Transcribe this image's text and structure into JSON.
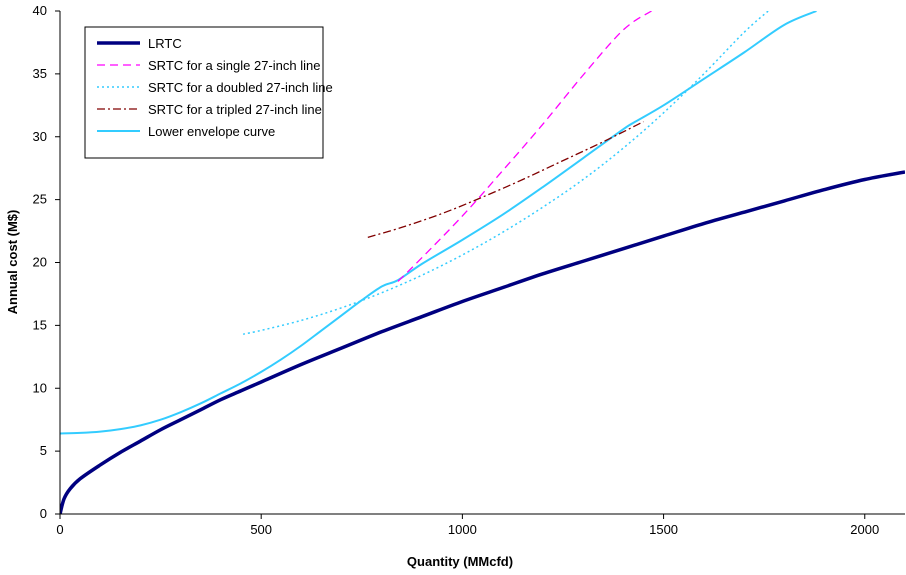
{
  "chart_data": {
    "type": "line",
    "xlabel": "Quantity (MMcfd)",
    "ylabel": "Annual cost (M$)",
    "xlim": [
      0,
      2100
    ],
    "ylim": [
      0,
      40
    ],
    "x_ticks": [
      "0",
      "500",
      "1000",
      "1500",
      "2000"
    ],
    "y_ticks": [
      "0",
      "5",
      "10",
      "15",
      "20",
      "25",
      "30",
      "35",
      "40"
    ],
    "grid": false,
    "legend_position": "top-left",
    "series": [
      {
        "name": "LRTC",
        "color": "#000080",
        "style": "solid-thick",
        "x": [
          0,
          10,
          25,
          50,
          100,
          150,
          200,
          250,
          300,
          350,
          400,
          450,
          500,
          600,
          700,
          800,
          900,
          1000,
          1100,
          1200,
          1300,
          1400,
          1500,
          1600,
          1700,
          1800,
          1900,
          2000,
          2100
        ],
        "y": [
          0,
          1.2,
          2.0,
          2.8,
          3.9,
          4.9,
          5.8,
          6.7,
          7.5,
          8.3,
          9.1,
          9.8,
          10.5,
          11.9,
          13.2,
          14.5,
          15.7,
          16.9,
          18.0,
          19.1,
          20.1,
          21.1,
          22.1,
          23.1,
          24.0,
          24.9,
          25.8,
          26.6,
          27.2
        ]
      },
      {
        "name": "SRTC for a single 27-inch line",
        "color": "#ff00ff",
        "style": "dashed",
        "x": [
          840,
          900,
          1000,
          1100,
          1200,
          1300,
          1400,
          1470
        ],
        "y": [
          18.5,
          20.4,
          23.7,
          27.3,
          31.0,
          34.9,
          38.5,
          40
        ]
      },
      {
        "name": "SRTC for a doubled 27-inch line",
        "color": "#33ccff",
        "style": "dotted",
        "x": [
          455,
          500,
          600,
          700,
          800,
          900,
          1000,
          1100,
          1200,
          1300,
          1400,
          1500,
          1600,
          1700,
          1760
        ],
        "y": [
          14.3,
          14.6,
          15.4,
          16.4,
          17.6,
          19.0,
          20.6,
          22.4,
          24.4,
          26.6,
          29.1,
          31.9,
          35.0,
          38.3,
          40
        ]
      },
      {
        "name": "SRTC for a tripled 27-inch line",
        "color": "#800000",
        "style": "dash-dot",
        "x": [
          765,
          850,
          950,
          1050,
          1150,
          1250,
          1350,
          1450
        ],
        "y": [
          22.0,
          22.8,
          23.9,
          25.2,
          26.6,
          28.1,
          29.6,
          31.2
        ]
      },
      {
        "name": "Lower envelope curve",
        "color": "#33ccff",
        "style": "solid",
        "x": [
          0,
          50,
          100,
          150,
          200,
          250,
          300,
          350,
          400,
          450,
          500,
          550,
          600,
          650,
          700,
          750,
          800,
          840,
          900,
          1000,
          1100,
          1200,
          1300,
          1400,
          1430,
          1500,
          1600,
          1700,
          1800,
          1880
        ],
        "y": [
          6.4,
          6.45,
          6.55,
          6.75,
          7.05,
          7.5,
          8.1,
          8.8,
          9.6,
          10.4,
          11.3,
          12.3,
          13.4,
          14.6,
          15.8,
          17.0,
          18.1,
          18.6,
          19.9,
          21.8,
          23.8,
          26.0,
          28.3,
          30.6,
          31.2,
          32.5,
          34.6,
          36.7,
          38.9,
          40
        ]
      }
    ]
  }
}
